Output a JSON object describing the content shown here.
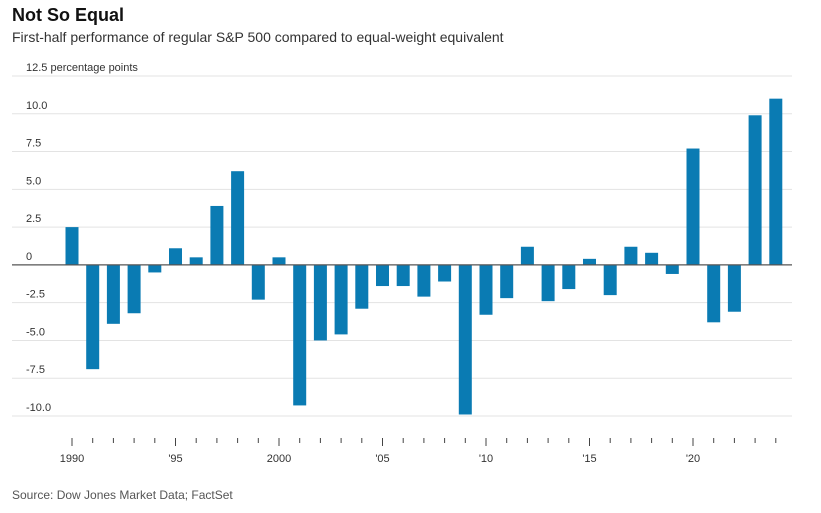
{
  "header": {
    "title": "Not So Equal",
    "subtitle": "First-half performance of regular S&P 500 compared to equal-weight equivalent"
  },
  "footer": {
    "source": "Source: Dow Jones Market Data; FactSet"
  },
  "colors": {
    "bar": "#0a7bb3",
    "grid": "#e3e3e3",
    "zero_line": "#555555"
  },
  "chart_data": {
    "type": "bar",
    "title": "Not So Equal",
    "subtitle": "First-half performance of regular S&P 500 compared to equal-weight equivalent",
    "ylabel": "percentage points",
    "ylim": [
      -10,
      12.5
    ],
    "grid": true,
    "y_ticks": [
      {
        "value": 12.5,
        "label": "12.5 percentage points"
      },
      {
        "value": 10,
        "label": "10.0"
      },
      {
        "value": 7.5,
        "label": "7.5"
      },
      {
        "value": 5,
        "label": "5.0"
      },
      {
        "value": 2.5,
        "label": "2.5"
      },
      {
        "value": 0,
        "label": "0"
      },
      {
        "value": -2.5,
        "label": "-2.5"
      },
      {
        "value": -5,
        "label": "-5.0"
      },
      {
        "value": -7.5,
        "label": "-7.5"
      },
      {
        "value": -10,
        "label": "-10.0"
      }
    ],
    "x_ticks": [
      {
        "year": 1990,
        "label": "1990"
      },
      {
        "year": 1995,
        "label": "'95"
      },
      {
        "year": 2000,
        "label": "2000"
      },
      {
        "year": 2005,
        "label": "'05"
      },
      {
        "year": 2010,
        "label": "'10"
      },
      {
        "year": 2015,
        "label": "'15"
      },
      {
        "year": 2020,
        "label": "'20"
      }
    ],
    "categories": [
      1990,
      1991,
      1992,
      1993,
      1994,
      1995,
      1996,
      1997,
      1998,
      1999,
      2000,
      2001,
      2002,
      2003,
      2004,
      2005,
      2006,
      2007,
      2008,
      2009,
      2010,
      2011,
      2012,
      2013,
      2014,
      2015,
      2016,
      2017,
      2018,
      2019,
      2020,
      2021,
      2022,
      2023,
      2024
    ],
    "values": [
      2.5,
      -6.9,
      -3.9,
      -3.2,
      -0.5,
      1.1,
      0.5,
      3.9,
      6.2,
      -2.3,
      0.5,
      -9.3,
      -5.0,
      -4.6,
      -2.9,
      -1.4,
      -1.4,
      -2.1,
      -1.1,
      -9.9,
      -3.3,
      -2.2,
      1.2,
      -2.4,
      -1.6,
      0.4,
      -2.0,
      1.2,
      0.8,
      -0.6,
      7.7,
      -3.8,
      -3.1,
      9.9,
      11.0
    ]
  }
}
